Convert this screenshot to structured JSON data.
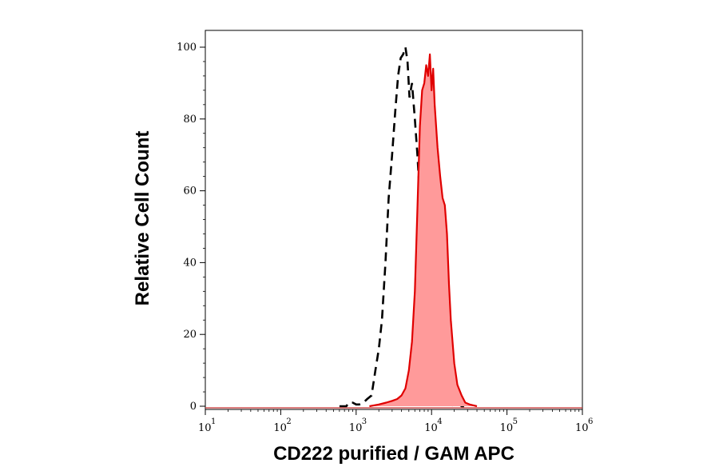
{
  "chart_data": {
    "type": "area",
    "xlabel": "CD222 purified / GAM APC",
    "ylabel": "Relative Cell Count",
    "x_scale": "log",
    "xlim": [
      10,
      1000000
    ],
    "ylim": [
      0,
      100
    ],
    "x_ticks": [
      {
        "base": "10",
        "exp": "1",
        "value": 10
      },
      {
        "base": "10",
        "exp": "2",
        "value": 100
      },
      {
        "base": "10",
        "exp": "3",
        "value": 1000
      },
      {
        "base": "10",
        "exp": "4",
        "value": 10000
      },
      {
        "base": "10",
        "exp": "5",
        "value": 100000
      },
      {
        "base": "10",
        "exp": "6",
        "value": 1000000
      }
    ],
    "y_ticks": [
      "0",
      "20",
      "40",
      "60",
      "80",
      "100"
    ],
    "grid": false,
    "series": [
      {
        "style": "dashed",
        "color": "#000000",
        "x": [
          600,
          740,
          800,
          900,
          1000,
          1100,
          1250,
          1400,
          1600,
          1800,
          2000,
          2200,
          2450,
          2700,
          3000,
          3300,
          3600,
          3900,
          4200,
          4500,
          4800,
          5100,
          5500,
          6000,
          6500,
          7000,
          7500,
          8000,
          8500,
          9000,
          9500,
          10200,
          11000,
          12000,
          13000,
          14000,
          15000,
          16500,
          18000,
          20000,
          22000,
          25000,
          30000
        ],
        "y": [
          0,
          0,
          1,
          1,
          0.5,
          0.5,
          1,
          2,
          3,
          10,
          16,
          24,
          40,
          58,
          70,
          82,
          92,
          97,
          98,
          100,
          96,
          86,
          90,
          80,
          70,
          58,
          44,
          30,
          20,
          26,
          18,
          10,
          6,
          3,
          2,
          1.5,
          1,
          1,
          0.5,
          0,
          1,
          0,
          0
        ]
      },
      {
        "style": "filled",
        "color": "#e00000",
        "fill": "#ff9a9a",
        "x": [
          1500,
          2000,
          2500,
          3000,
          3500,
          4000,
          4500,
          5000,
          5500,
          6000,
          6500,
          7000,
          7500,
          8000,
          8500,
          9000,
          9500,
          10000,
          10500,
          11000,
          12000,
          13000,
          14000,
          15000,
          16000,
          17000,
          18000,
          20000,
          22000,
          25000,
          28000,
          32000,
          40000
        ],
        "y": [
          0,
          0.5,
          1,
          1.5,
          2,
          3,
          5,
          10,
          18,
          32,
          55,
          78,
          88,
          90,
          95,
          92,
          98,
          88,
          94,
          84,
          72,
          64,
          58,
          56,
          48,
          34,
          24,
          12,
          6,
          3,
          1,
          0.5,
          0
        ]
      }
    ]
  }
}
